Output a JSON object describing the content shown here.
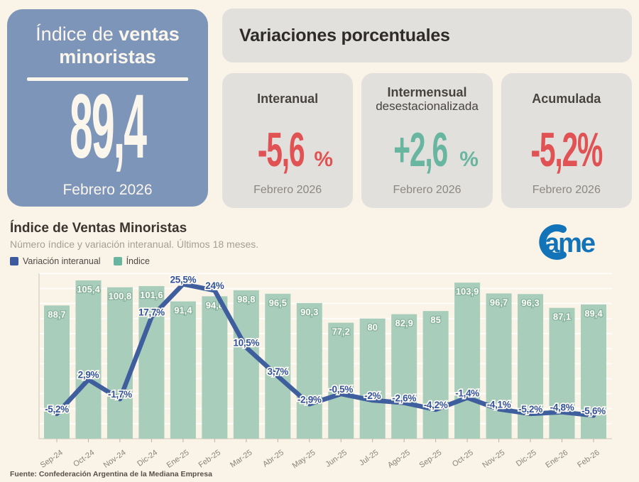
{
  "page": {
    "background": "#FAF3E7"
  },
  "summary_card": {
    "title_regular": "Índice de ",
    "title_bold": "ventas minoristas",
    "value": "89,4",
    "period": "Febrero 2026",
    "background": "#7E95BA"
  },
  "variations": {
    "header": "Variaciones porcentuales",
    "cards": [
      {
        "title": "Interanual",
        "subtitle": "",
        "value": "-5,6",
        "unit": "%",
        "color": "#E05253",
        "period": "Febrero 2026"
      },
      {
        "title": "Intermensual",
        "subtitle": "desestacionalizada",
        "value": "+2,6",
        "unit": "%",
        "color": "#68B5A0",
        "period": "Febrero 2026"
      },
      {
        "title": "Acumulada",
        "subtitle": "",
        "value": "-5,2%",
        "unit": "",
        "color": "#E05253",
        "period": "Febrero 2026"
      }
    ]
  },
  "chart": {
    "title": "Índice de Ventas Minoristas",
    "subtitle": "Número índice y variación interanual. Últimos 18 meses.",
    "legend": [
      {
        "label": "Variación interanual",
        "color": "#3B5B9E"
      },
      {
        "label": "Índice",
        "color": "#68B5A0"
      }
    ],
    "logo_text": "Came",
    "logo_color": "#1273B8",
    "source": "Fuente: Confederación Argentina de la Mediana Empresa"
  },
  "chart_data": {
    "type": "bar+line",
    "categories": [
      "Sep-24",
      "Oct-24",
      "Nov-24",
      "Dic-24",
      "Ene-25",
      "Feb-25",
      "Mar-25",
      "Abr-25",
      "May-25",
      "Jun-25",
      "Jul-25",
      "Ago-25",
      "Sep-25",
      "Oct-25",
      "Nov-25",
      "Dic-25",
      "Ene-26",
      "Feb-26"
    ],
    "series": [
      {
        "name": "Índice",
        "kind": "bar",
        "color": "#A8CDBA",
        "values": [
          88.7,
          105.4,
          100.8,
          101.6,
          91.4,
          94.8,
          98.8,
          96.5,
          90.3,
          77.2,
          80,
          82.9,
          85,
          103.9,
          96.7,
          96.3,
          87.1,
          89.4
        ],
        "labels": [
          "88,7",
          "105,4",
          "100,8",
          "101,6",
          "91,4",
          "94,8",
          "98,8",
          "96,5",
          "90,3",
          "77,2",
          "80",
          "82,9",
          "85",
          "103,9",
          "96,7",
          "96,3",
          "87,1",
          "89,4"
        ]
      },
      {
        "name": "Variación interanual",
        "kind": "line",
        "color": "#3F5E9E",
        "values": [
          -5.2,
          2.9,
          -1.7,
          17.7,
          25.5,
          24,
          10.5,
          3.7,
          -2.9,
          -0.5,
          -2,
          -2.6,
          -4.2,
          -1.4,
          -4.1,
          -5.2,
          -4.8,
          -5.6
        ],
        "labels": [
          "-5,2%",
          "2,9%",
          "-1,7%",
          "17,7%",
          "25,5%",
          "24%",
          "10,5%",
          "3,7%",
          "-2,9%",
          "-0,5%",
          "-2%",
          "-2,6%",
          "-4,2%",
          "-1,4%",
          "-4,1%",
          "-5,2%",
          "-4,8%",
          "-5,6%"
        ]
      }
    ],
    "title": "Índice de Ventas Minoristas",
    "xlabel": "",
    "ylabel": "",
    "bar_ylim": [
      0,
      110
    ],
    "line_ylim": [
      -10,
      30
    ],
    "grid": true,
    "y_tick_labels_visible": false,
    "legend_position": "top-left"
  }
}
